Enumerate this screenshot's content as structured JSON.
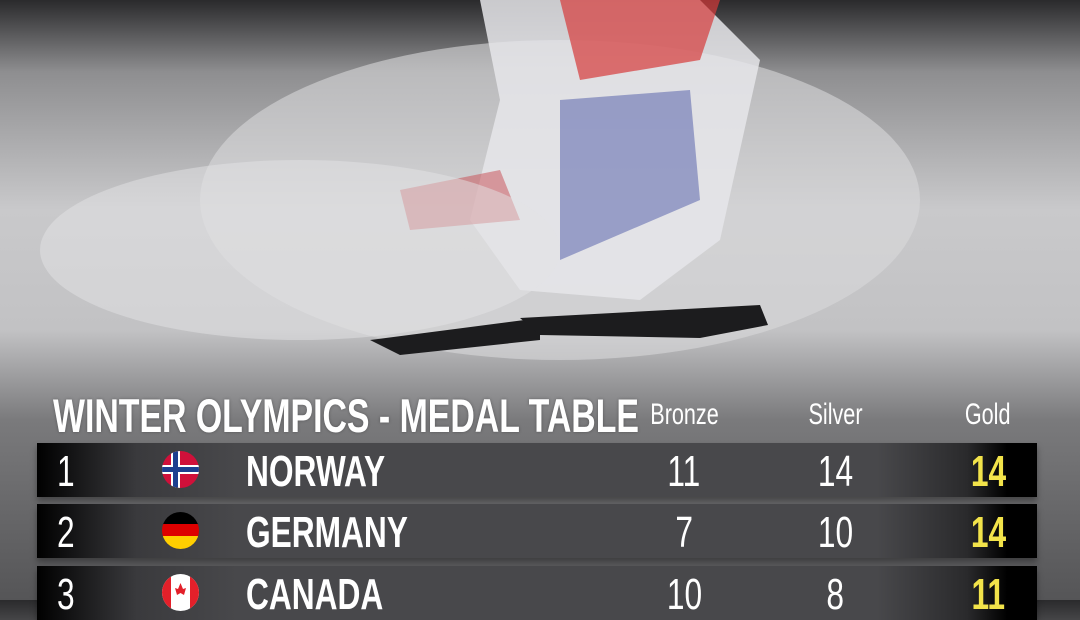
{
  "title": "WINTER OLYMPICS - MEDAL TABLE",
  "columns": [
    "Bronze",
    "Silver",
    "Gold"
  ],
  "colors": {
    "gold_value": "#f2e34a",
    "row_bg": "#48484b"
  },
  "rows": [
    {
      "rank": "1",
      "country": "NORWAY",
      "flag": "norway-flag-icon",
      "bronze": "11",
      "silver": "14",
      "gold": "14"
    },
    {
      "rank": "2",
      "country": "GERMANY",
      "flag": "germany-flag-icon",
      "bronze": "7",
      "silver": "10",
      "gold": "14"
    },
    {
      "rank": "3",
      "country": "CANADA",
      "flag": "canada-flag-icon",
      "bronze": "10",
      "silver": "8",
      "gold": "11"
    }
  ]
}
